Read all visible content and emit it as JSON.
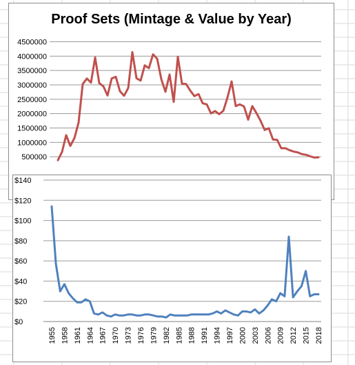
{
  "chart_data": [
    {
      "type": "line",
      "title": "Proof Sets (Mintage & Value by Year)",
      "xlabel": "",
      "ylabel": "",
      "ylim": [
        0,
        4500000
      ],
      "ytick_values": [
        500000,
        1000000,
        1500000,
        2000000,
        2500000,
        3000000,
        3500000,
        4000000,
        4500000
      ],
      "ytick_labels": [
        "500000",
        "1000000",
        "1500000",
        "2000000",
        "2500000",
        "3000000",
        "3500000",
        "4000000",
        "4500000"
      ],
      "grid": true,
      "color": "#c0504d",
      "x": [
        1955,
        1956,
        1957,
        1958,
        1959,
        1960,
        1961,
        1962,
        1963,
        1964,
        1965,
        1966,
        1967,
        1968,
        1969,
        1970,
        1971,
        1972,
        1973,
        1974,
        1975,
        1976,
        1977,
        1978,
        1979,
        1980,
        1981,
        1982,
        1983,
        1984,
        1985,
        1986,
        1987,
        1988,
        1989,
        1990,
        1991,
        1992,
        1993,
        1994,
        1995,
        1996,
        1997,
        1998,
        1999,
        2000,
        2001,
        2002,
        2003,
        2004,
        2005,
        2006,
        2007,
        2008,
        2009,
        2010,
        2011,
        2012,
        2013,
        2014,
        2015,
        2016,
        2017,
        2018
      ],
      "values": [
        380000,
        669000,
        1250000,
        875000,
        1150000,
        1690000,
        3030000,
        3220000,
        3080000,
        3950000,
        3060000,
        2950000,
        2630000,
        3220000,
        3280000,
        2780000,
        2620000,
        2890000,
        4140000,
        3230000,
        3150000,
        3680000,
        3580000,
        4060000,
        3910000,
        3200000,
        2760000,
        3360000,
        2410000,
        3980000,
        3040000,
        3030000,
        2800000,
        2610000,
        2680000,
        2360000,
        2320000,
        2010000,
        2090000,
        1980000,
        2100000,
        2560000,
        3120000,
        2260000,
        2320000,
        2250000,
        1790000,
        2260000,
        2020000,
        1750000,
        1430000,
        1490000,
        1100000,
        1090000,
        795000,
        796000,
        730000,
        680000,
        650000,
        590000,
        570000,
        517000,
        470000,
        480000
      ]
    },
    {
      "type": "line",
      "title": "",
      "xlabel": "",
      "ylabel": "",
      "ylim": [
        0,
        140
      ],
      "ytick_values": [
        0,
        20,
        40,
        60,
        80,
        100,
        120,
        140
      ],
      "ytick_labels": [
        "$0",
        "$20",
        "$40",
        "$60",
        "$80",
        "$100",
        "$120",
        "$140"
      ],
      "xtick_labels": [
        "1955",
        "1958",
        "1961",
        "1964",
        "1967",
        "1970",
        "1973",
        "1976",
        "1979",
        "1982",
        "1985",
        "1988",
        "1991",
        "1994",
        "1997",
        "2000",
        "2003",
        "2006",
        "2009",
        "2012",
        "2015",
        "2018"
      ],
      "grid": true,
      "color": "#4f81bd",
      "x": [
        1955,
        1956,
        1957,
        1958,
        1959,
        1960,
        1961,
        1962,
        1963,
        1964,
        1965,
        1966,
        1967,
        1968,
        1969,
        1970,
        1971,
        1972,
        1973,
        1974,
        1975,
        1976,
        1977,
        1978,
        1979,
        1980,
        1981,
        1982,
        1983,
        1984,
        1985,
        1986,
        1987,
        1988,
        1989,
        1990,
        1991,
        1992,
        1993,
        1994,
        1995,
        1996,
        1997,
        1998,
        1999,
        2000,
        2001,
        2002,
        2003,
        2004,
        2005,
        2006,
        2007,
        2008,
        2009,
        2010,
        2011,
        2012,
        2013,
        2014,
        2015,
        2016,
        2017,
        2018
      ],
      "values": [
        114,
        57,
        30,
        37,
        28,
        23,
        19,
        19,
        22,
        20,
        8,
        7,
        9,
        6,
        5,
        7,
        6,
        6,
        7,
        7,
        6,
        6,
        7,
        7,
        6,
        5,
        5,
        4,
        7,
        6,
        6,
        6,
        6,
        7,
        7,
        7,
        7,
        7,
        8,
        10,
        8,
        11,
        9,
        7,
        6,
        10,
        10,
        9,
        12,
        8,
        11,
        16,
        22,
        20,
        28,
        25,
        84,
        24,
        30,
        35,
        50,
        25,
        27,
        27
      ]
    }
  ]
}
